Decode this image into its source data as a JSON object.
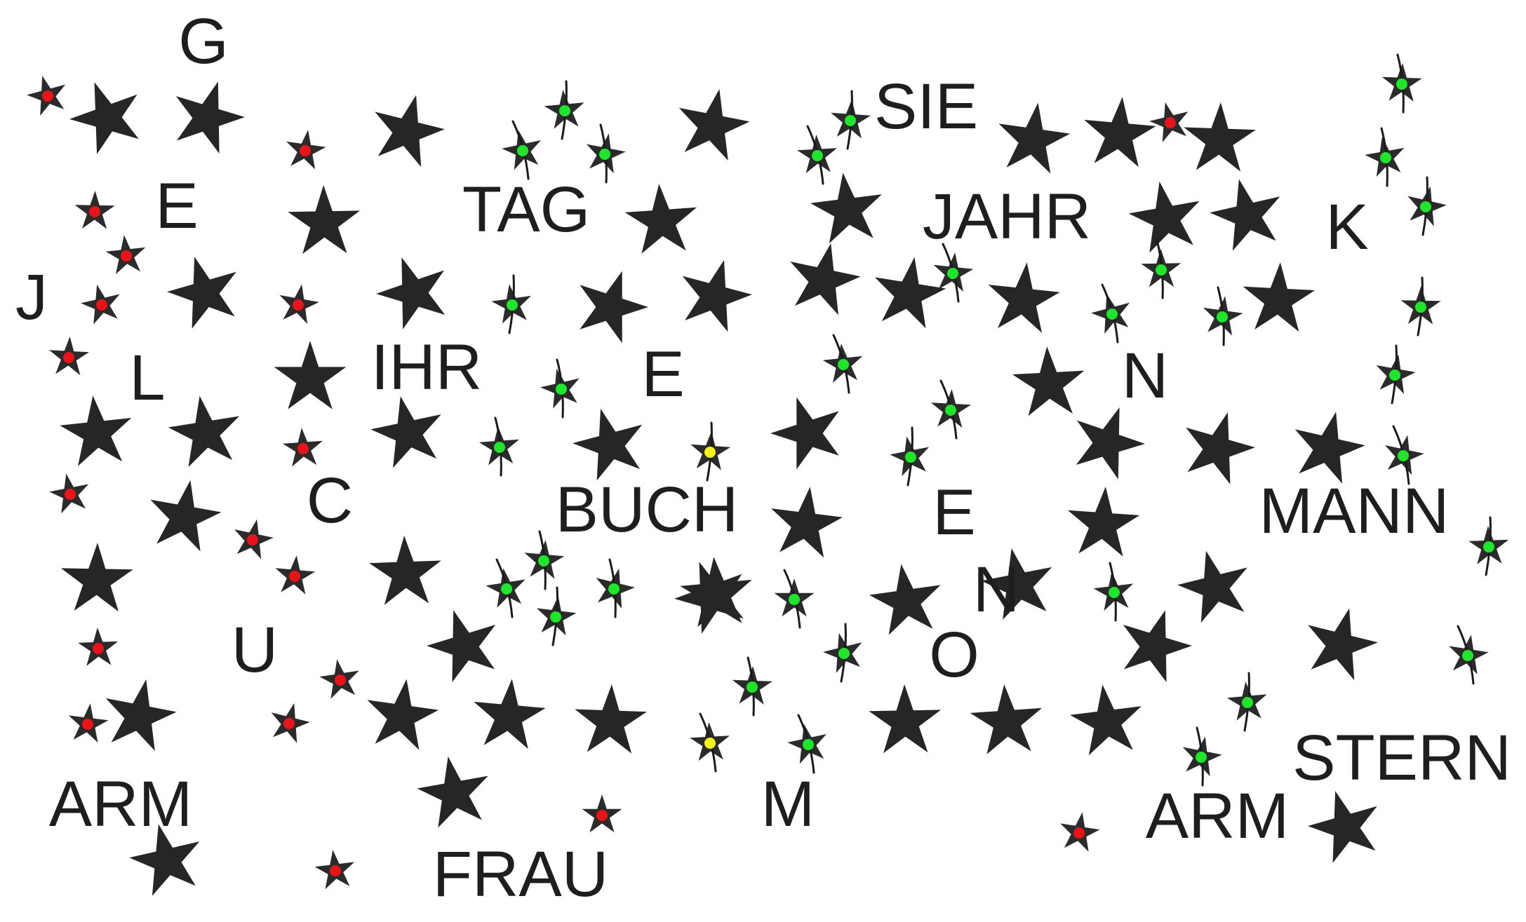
{
  "sheet": {
    "type": "star cancellation test",
    "background": "#ffffff",
    "colors": {
      "star": "#262626",
      "mark_red": "#e8141a",
      "mark_green": "#1fe62a",
      "mark_yellow": "#f4f21c"
    }
  },
  "words": [
    "G",
    "E",
    "TAG",
    "SIE",
    "JAHR",
    "K",
    "J",
    "L",
    "IHR",
    "E",
    "N",
    "C",
    "BUCH",
    "E",
    "MANN",
    "N",
    "U",
    "O",
    "STERN",
    "ARM",
    "M",
    "ARM",
    "FRAU"
  ],
  "marks": {
    "legend": {
      "red": "small star marked red",
      "green": "small star crossed out and marked green",
      "yellow": "small star marked yellow"
    }
  }
}
